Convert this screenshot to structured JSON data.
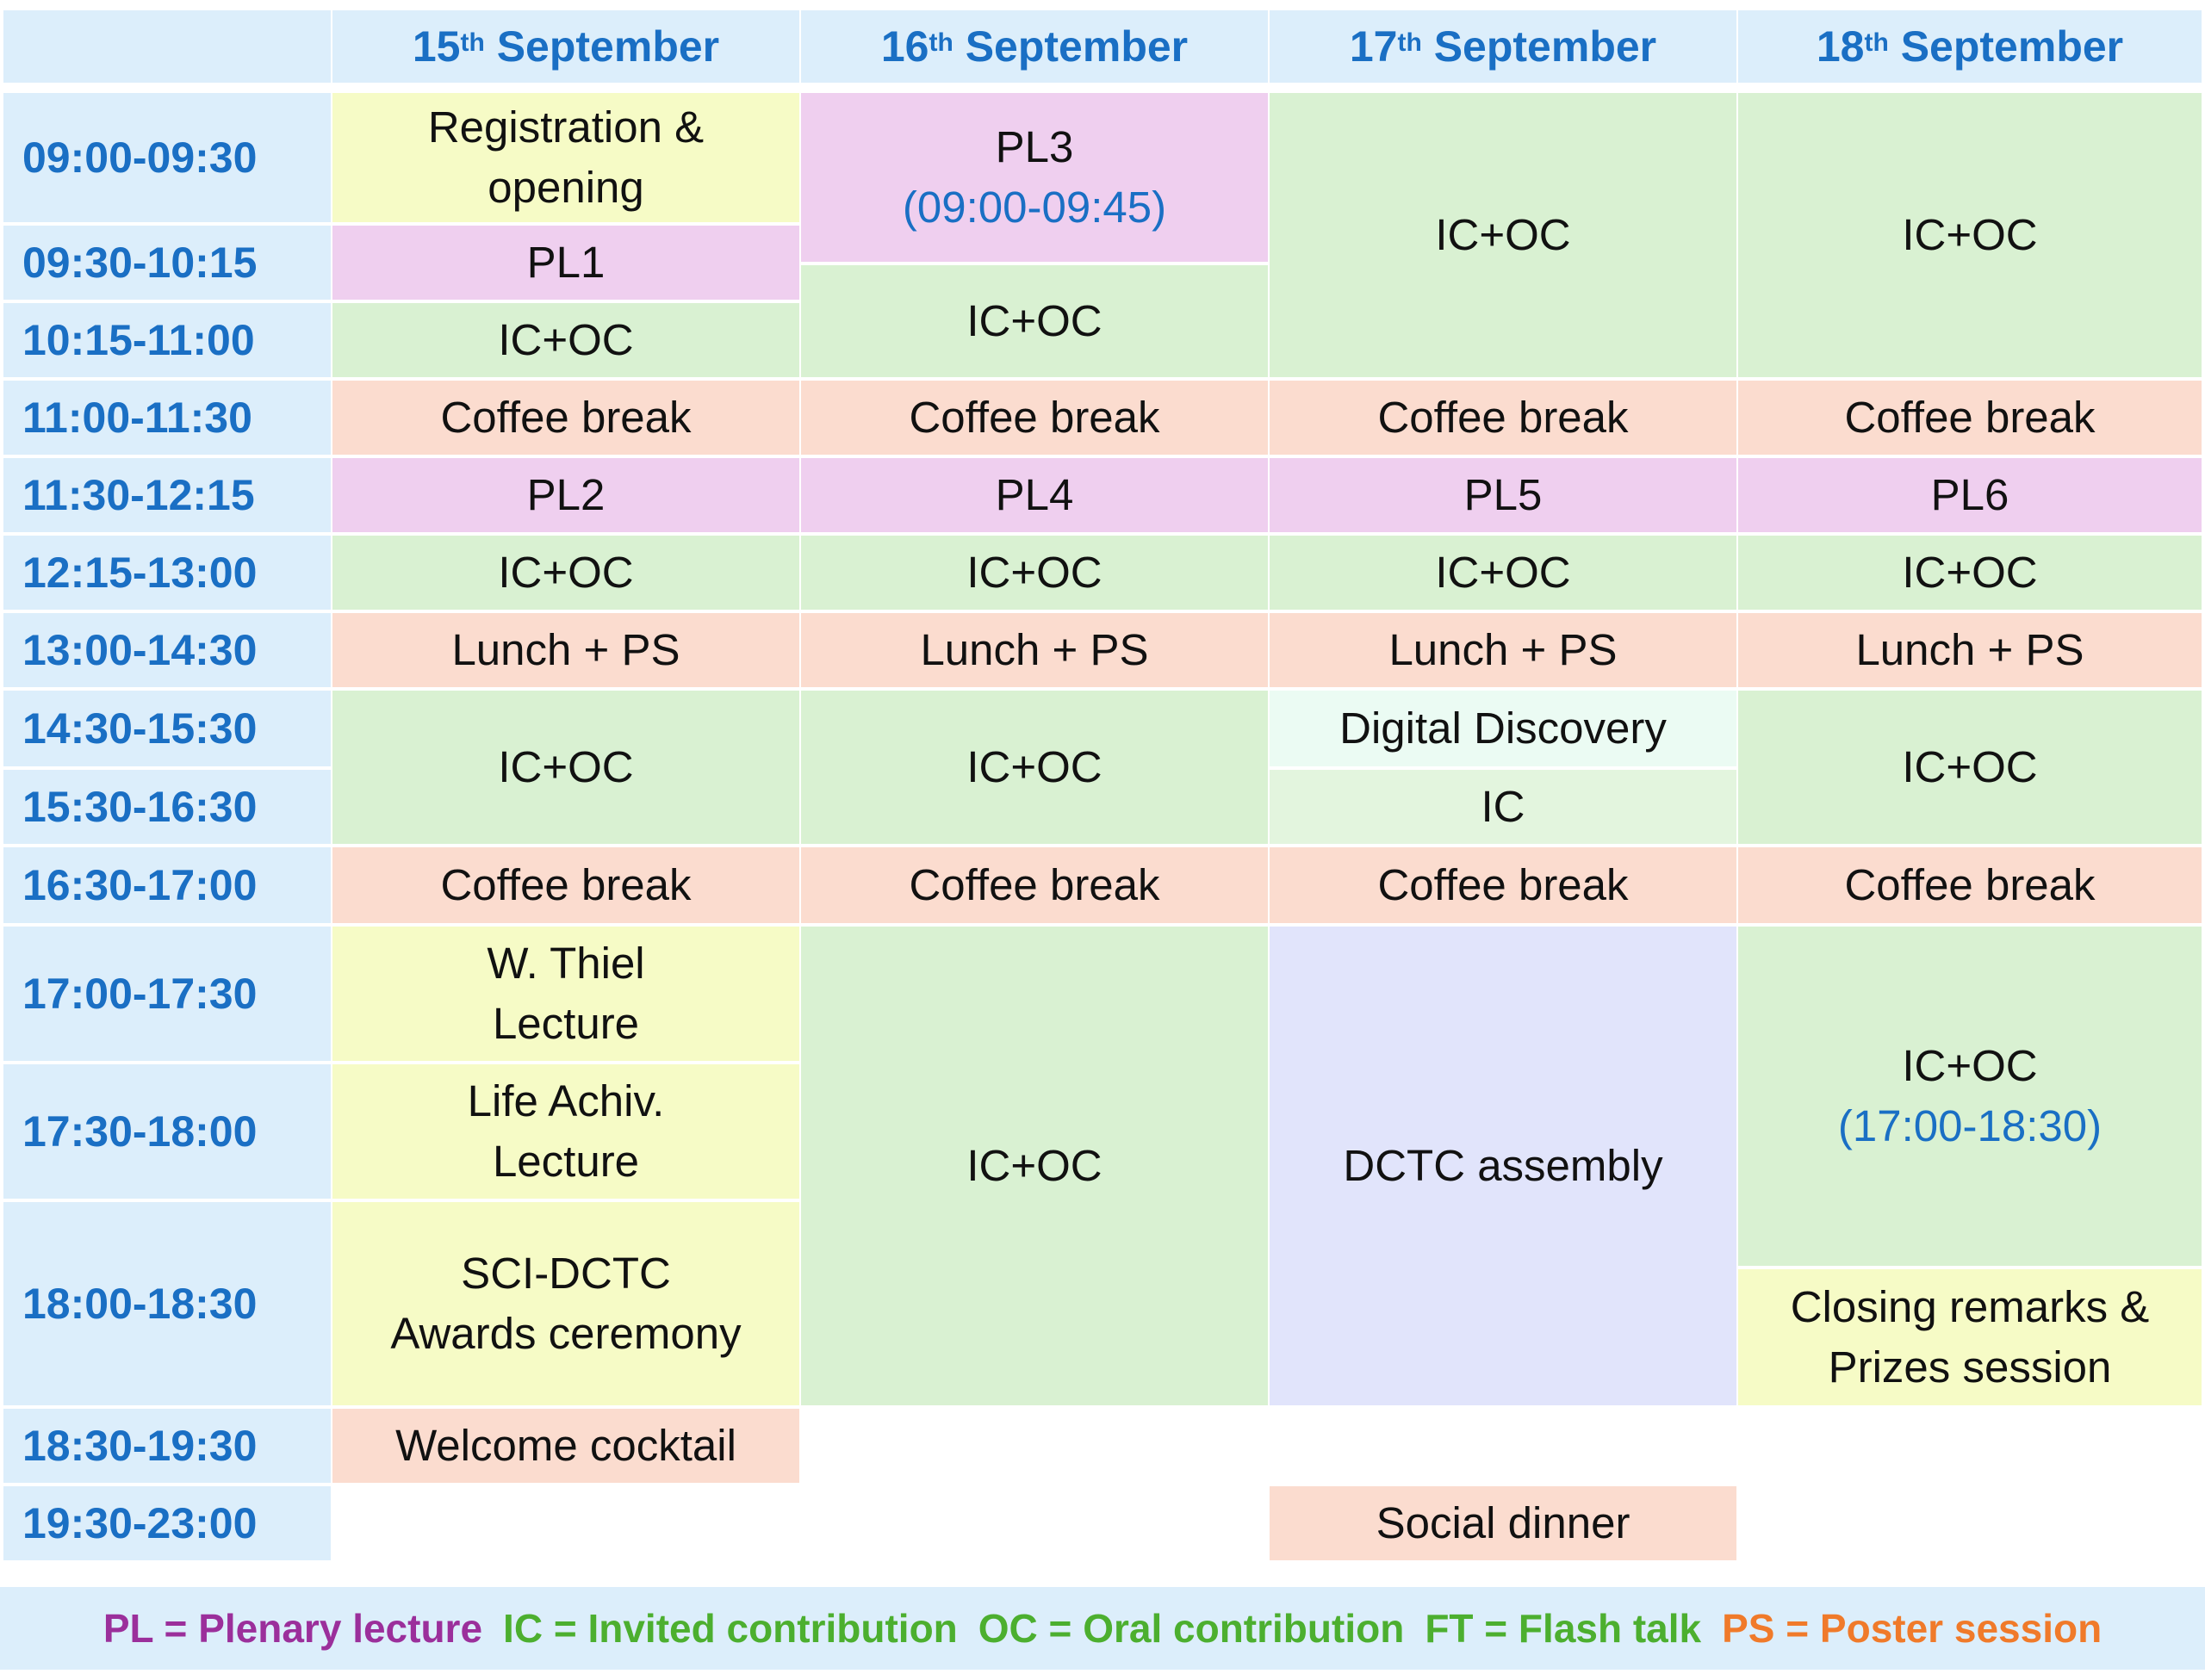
{
  "colors": {
    "header_bg": "#dceefb",
    "header_text": "#1a6fc4",
    "yellow": "#f6fbc6",
    "pink": "#efcfef",
    "green": "#d9f1d2",
    "orange": "#fbdccf",
    "lavender": "#e1e4fb",
    "mint": "#ebfbf3",
    "legend_pl": "#9b2f9b",
    "legend_green": "#4caf2f",
    "legend_ps": "#f07a2a"
  },
  "days": [
    {
      "num": "15",
      "sup": "th",
      "month": "September"
    },
    {
      "num": "16",
      "sup": "th",
      "month": "September"
    },
    {
      "num": "17",
      "sup": "th",
      "month": "September"
    },
    {
      "num": "18",
      "sup": "th",
      "month": "September"
    }
  ],
  "times": [
    "09:00-09:30",
    "09:30-10:15",
    "10:15-11:00",
    "11:00-11:30",
    "11:30-12:15",
    "12:15-13:00",
    "13:00-14:30",
    "14:30-15:30",
    "15:30-16:30",
    "16:30-17:00",
    "17:00-17:30",
    "17:30-18:00",
    "18:00-18:30",
    "18:30-19:30",
    "19:30-23:00"
  ],
  "sessions": {
    "d1": {
      "registration": [
        "Registration &",
        "opening"
      ],
      "pl1": "PL1",
      "icoc_a": "IC+OC",
      "coffee_am": "Coffee break",
      "pl2": "PL2",
      "icoc_b": "IC+OC",
      "lunch": "Lunch + PS",
      "icoc_c": "IC+OC",
      "coffee_pm": "Coffee break",
      "thiel": [
        "W. Thiel",
        "Lecture"
      ],
      "lifeachiv": [
        "Life Achiv.",
        "Lecture"
      ],
      "awards": [
        "SCI-DCTC",
        "Awards ceremony"
      ],
      "cocktail": "Welcome cocktail"
    },
    "d2": {
      "pl3": "PL3",
      "pl3_time": "(09:00-09:45)",
      "icoc_a": "IC+OC",
      "coffee_am": "Coffee break",
      "pl4": "PL4",
      "icoc_b": "IC+OC",
      "lunch": "Lunch + PS",
      "icoc_c": "IC+OC",
      "coffee_pm": "Coffee break",
      "icoc_d": "IC+OC"
    },
    "d3": {
      "icoc_a": "IC+OC",
      "coffee_am": "Coffee break",
      "pl5": "PL5",
      "icoc_b": "IC+OC",
      "lunch": "Lunch + PS",
      "digital": "Digital Discovery",
      "ic": "IC",
      "coffee_pm": "Coffee break",
      "assembly": "DCTC assembly",
      "dinner": "Social dinner"
    },
    "d4": {
      "icoc_a": "IC+OC",
      "coffee_am": "Coffee break",
      "pl6": "PL6",
      "icoc_b": "IC+OC",
      "lunch": "Lunch + PS",
      "icoc_c": "IC+OC",
      "coffee_pm": "Coffee break",
      "icoc_d": "IC+OC",
      "icoc_d_time": "(17:00-18:30)",
      "closing": [
        "Closing remarks &",
        "Prizes session"
      ]
    }
  },
  "legend": {
    "pl": "PL = Plenary lecture",
    "ic": "IC = Invited contribution",
    "oc": "OC = Oral contribution",
    "ft": "FT = Flash talk",
    "ps": "PS = Poster session"
  }
}
